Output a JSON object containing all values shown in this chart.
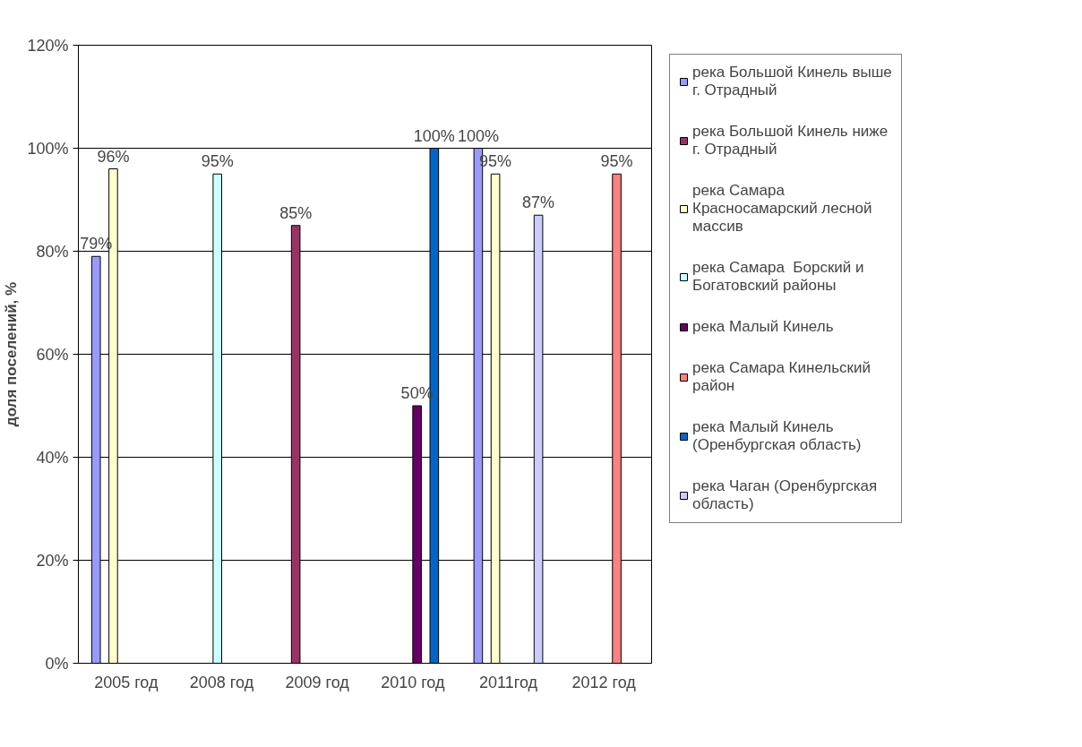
{
  "chart_data": {
    "type": "bar",
    "ylabel": "доля поселений, %",
    "categories": [
      "2005 год",
      "2008 год",
      "2009 год",
      "2010 год",
      "2011год",
      "2012 год"
    ],
    "ylim": [
      0,
      120
    ],
    "yticks": [
      {
        "value": 0,
        "label": "0%"
      },
      {
        "value": 20,
        "label": "20%"
      },
      {
        "value": 40,
        "label": "40%"
      },
      {
        "value": 60,
        "label": "60%"
      },
      {
        "value": 80,
        "label": "80%"
      },
      {
        "value": 100,
        "label": "100%"
      },
      {
        "value": 120,
        "label": "120%"
      }
    ],
    "grid": "y",
    "legend": "right",
    "series": [
      {
        "name": "река Большой Кинель выше г. Отрадный",
        "color": "#9999ff",
        "values": [
          79,
          null,
          null,
          null,
          100,
          null
        ],
        "value_labels": [
          "79%",
          null,
          null,
          null,
          "100%",
          null
        ]
      },
      {
        "name": "река Большой Кинель ниже г. Отрадный",
        "color": "#993366",
        "values": [
          null,
          null,
          85,
          null,
          null,
          null
        ],
        "value_labels": [
          null,
          null,
          "85%",
          null,
          null,
          null
        ]
      },
      {
        "name": "река Самара Красносамарский лесной массив",
        "color": "#ffffcc",
        "values": [
          96,
          null,
          null,
          null,
          95,
          null
        ],
        "value_labels": [
          "96%",
          null,
          null,
          null,
          "95%",
          null
        ]
      },
      {
        "name": "река Самара  Борский и Богатовский районы",
        "color": "#ccffff",
        "values": [
          null,
          95,
          null,
          null,
          null,
          null
        ],
        "value_labels": [
          null,
          "95%",
          null,
          null,
          null,
          null
        ]
      },
      {
        "name": "река Малый Кинель",
        "color": "#660066",
        "values": [
          null,
          null,
          null,
          50,
          null,
          null
        ],
        "value_labels": [
          null,
          null,
          null,
          "50%",
          null,
          null
        ]
      },
      {
        "name": "река Самара Кинельский район",
        "color": "#ff8080",
        "values": [
          null,
          null,
          null,
          null,
          null,
          95
        ],
        "value_labels": [
          null,
          null,
          null,
          null,
          null,
          "95%"
        ]
      },
      {
        "name": "река Малый Кинель (Оренбургская область)",
        "color": "#0066cc",
        "values": [
          null,
          null,
          null,
          100,
          null,
          null
        ],
        "value_labels": [
          null,
          null,
          null,
          "100%",
          null,
          null
        ]
      },
      {
        "name": "река Чаган (Оренбургская область)",
        "color": "#ccccff",
        "values": [
          null,
          null,
          null,
          null,
          87,
          null
        ],
        "value_labels": [
          null,
          null,
          null,
          null,
          "87%",
          null
        ]
      }
    ]
  }
}
